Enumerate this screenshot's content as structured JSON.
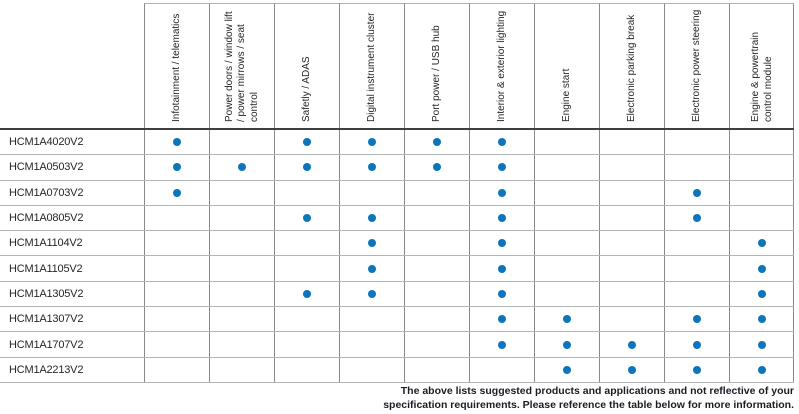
{
  "table": {
    "columns": [
      "Infotainment / telematics",
      "Power doors / window lift / power mirrows / seat control",
      "Safetly / ADAS",
      "Digital instrument cluster",
      "Port power / USB hub",
      "Interior & exterior lighting",
      "Engine start",
      "Electronic parking break",
      "Electronic power steering",
      "Engine & powertrain control module"
    ],
    "rows": [
      {
        "label": "HCM1A4020V2",
        "dots": [
          1,
          0,
          1,
          1,
          1,
          1,
          0,
          0,
          0,
          0
        ]
      },
      {
        "label": "HCM1A0503V2",
        "dots": [
          1,
          1,
          1,
          1,
          1,
          1,
          0,
          0,
          0,
          0
        ]
      },
      {
        "label": "HCM1A0703V2",
        "dots": [
          1,
          0,
          0,
          0,
          0,
          1,
          0,
          0,
          1,
          0
        ]
      },
      {
        "label": "HCM1A0805V2",
        "dots": [
          0,
          0,
          1,
          1,
          0,
          1,
          0,
          0,
          1,
          0
        ]
      },
      {
        "label": "HCM1A1104V2",
        "dots": [
          0,
          0,
          0,
          1,
          0,
          1,
          0,
          0,
          0,
          1
        ]
      },
      {
        "label": "HCM1A1105V2",
        "dots": [
          0,
          0,
          0,
          1,
          0,
          1,
          0,
          0,
          0,
          1
        ]
      },
      {
        "label": "HCM1A1305V2",
        "dots": [
          0,
          0,
          1,
          1,
          0,
          1,
          0,
          0,
          0,
          1
        ]
      },
      {
        "label": "HCM1A1307V2",
        "dots": [
          0,
          0,
          0,
          0,
          0,
          1,
          1,
          0,
          1,
          1
        ]
      },
      {
        "label": "HCM1A1707V2",
        "dots": [
          0,
          0,
          0,
          0,
          0,
          1,
          1,
          1,
          1,
          1
        ]
      },
      {
        "label": "HCM1A2213V2",
        "dots": [
          0,
          0,
          0,
          0,
          0,
          0,
          1,
          1,
          1,
          1
        ]
      }
    ]
  },
  "footer": {
    "line1": "The above lists suggested products and applications and not reflective of your",
    "line2": "specification requirements. Please reference the table below for more information."
  },
  "colors": {
    "dot_blue": "#0c76bd",
    "grid_vertical": "#8a8a8a",
    "grid_horizontal": "#b3b3b3",
    "header_separator": "#3f3f3f",
    "header_top_border": "#a9b6be",
    "text": "#26262b"
  }
}
